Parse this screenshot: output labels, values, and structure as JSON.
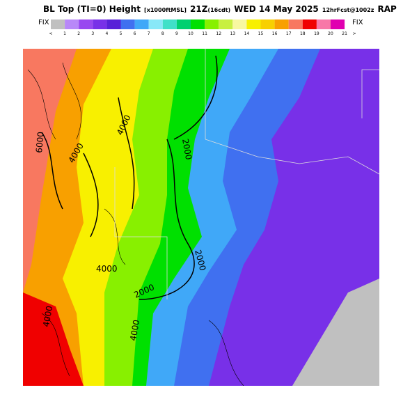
{
  "header": {
    "parts": [
      "BL Top (TI=0) Height",
      "[x1000ftMSL]",
      "21Z",
      "(16cdt)",
      "WED 14 May 2025",
      "12hrFcst@1002z",
      "RAP"
    ]
  },
  "colorbar": {
    "left_label": "FIX",
    "right_label": "FIX",
    "start_label": "<",
    "end_label": ">",
    "labels": [
      "1",
      "2",
      "3",
      "4",
      "5",
      "6",
      "7",
      "8",
      "9",
      "10",
      "11",
      "12",
      "13",
      "14",
      "15",
      "16",
      "17",
      "18",
      "19",
      "20",
      "21"
    ],
    "colors": [
      "#c0c0c0",
      "#b888f8",
      "#9848f0",
      "#7830e8",
      "#5820d8",
      "#4070f0",
      "#40a8f8",
      "#88e8f8",
      "#40e0c8",
      "#00d070",
      "#00e000",
      "#88f000",
      "#c8f040",
      "#f8f8a0",
      "#f8f000",
      "#f8d000",
      "#f8a000",
      "#f87860",
      "#f00000",
      "#f878a8",
      "#e000b0"
    ]
  },
  "contour_labels": [
    "6000",
    "4000",
    "4000",
    "4000",
    "2000",
    "2000",
    "2000",
    "4000",
    "4000"
  ]
}
